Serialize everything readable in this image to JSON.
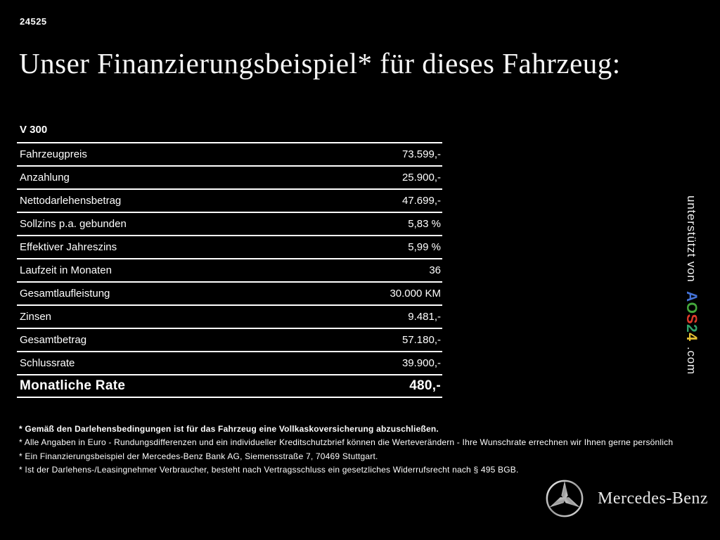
{
  "page": {
    "ref_number": "24525",
    "title": "Unser Finanzierungsbeispiel* für dieses Fahrzeug:"
  },
  "finance_table": {
    "model": "V 300",
    "rows": [
      {
        "label": "Fahrzeugpreis",
        "value": "73.599,-"
      },
      {
        "label": "Anzahlung",
        "value": "25.900,-"
      },
      {
        "label": "Nettodarlehensbetrag",
        "value": "47.699,-"
      },
      {
        "label": "Sollzins p.a. gebunden",
        "value": "5,83 %"
      },
      {
        "label": "Effektiver Jahreszins",
        "value": "5,99 %"
      },
      {
        "label": "Laufzeit in Monaten",
        "value": "36"
      },
      {
        "label": "Gesamtlaufleistung",
        "value": "30.000 KM"
      },
      {
        "label": "Zinsen",
        "value": "9.481,-"
      },
      {
        "label": "Gesamtbetrag",
        "value": "57.180,-"
      },
      {
        "label": "Schlussrate",
        "value": "39.900,-"
      }
    ],
    "highlight_row": {
      "label": "Monatliche Rate",
      "value": "480,-"
    }
  },
  "footnotes": [
    "* Gemäß den Darlehensbedingungen ist für das Fahrzeug eine Vollkaskoversicherung abzuschließen.",
    "* Alle Angaben in Euro - Rundungsdifferenzen und ein individueller Kreditschutzbrief können die Werteverändern - Ihre Wunschrate errechnen wir Ihnen gerne persönlich",
    "* Ein Finanzierungsbeispiel der Mercedes-Benz Bank AG, Siemensstraße 7, 70469 Stuttgart.",
    "* Ist der Darlehens-/Leasingnehmer Verbraucher, besteht nach Vertragsschluss ein gesetzliches Widerrufsrecht nach § 495 BGB."
  ],
  "sponsor": {
    "prefix": "unterstützt von",
    "brand_letters": [
      {
        "char": "A",
        "color": "#4472d6"
      },
      {
        "char": "O",
        "color": "#44a83c"
      },
      {
        "char": "S",
        "color": "#e03a2a"
      },
      {
        "char": "2",
        "color": "#2fa36b"
      },
      {
        "char": "4",
        "color": "#e4c234"
      }
    ],
    "suffix": ".com"
  },
  "footer": {
    "brand": "Mercedes-Benz"
  },
  "colors": {
    "background": "#000000",
    "text": "#ffffff",
    "rule": "#ffffff",
    "logo_silver": "#c8c8c8"
  }
}
